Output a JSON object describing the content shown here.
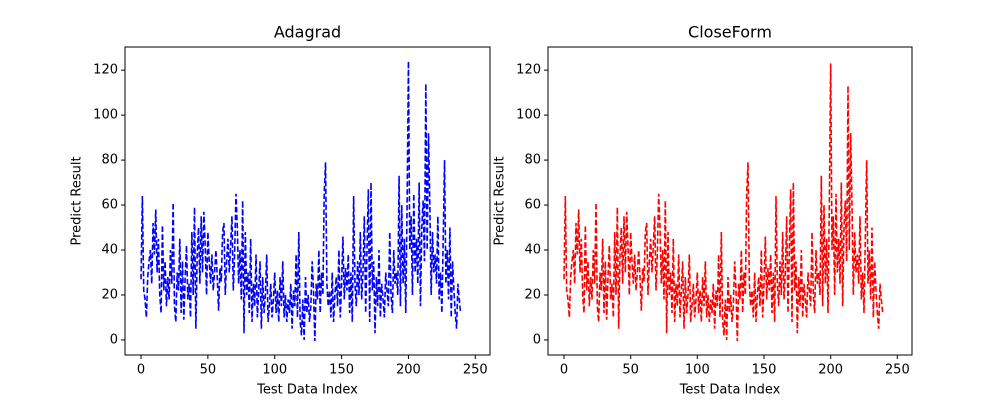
{
  "chart_data": [
    {
      "type": "line",
      "title": "Adagrad",
      "xlabel": "Test Data Index",
      "ylabel": "Predict Result",
      "color": "#0000ff",
      "line_style": "dashed",
      "xlim": [
        -12,
        261
      ],
      "ylim": [
        -6.7,
        130.3
      ],
      "xticks": [
        0,
        50,
        100,
        150,
        200,
        250
      ],
      "yticks": [
        0,
        20,
        40,
        60,
        80,
        100,
        120
      ],
      "x": [
        0,
        1,
        2,
        3,
        4,
        5,
        6,
        7,
        8,
        9,
        10,
        11,
        12,
        13,
        14,
        15,
        16,
        17,
        18,
        19,
        20,
        21,
        22,
        23,
        24,
        25,
        26,
        27,
        28,
        29,
        30,
        31,
        32,
        33,
        34,
        35,
        36,
        37,
        38,
        39,
        40,
        41,
        42,
        43,
        44,
        45,
        46,
        47,
        48,
        49,
        50,
        51,
        52,
        53,
        54,
        55,
        56,
        57,
        58,
        59,
        60,
        61,
        62,
        63,
        64,
        65,
        66,
        67,
        68,
        69,
        70,
        71,
        72,
        73,
        74,
        75,
        76,
        77,
        78,
        79,
        80,
        81,
        82,
        83,
        84,
        85,
        86,
        87,
        88,
        89,
        90,
        91,
        92,
        93,
        94,
        95,
        96,
        97,
        98,
        99,
        100,
        101,
        102,
        103,
        104,
        105,
        106,
        107,
        108,
        109,
        110,
        111,
        112,
        113,
        114,
        115,
        116,
        117,
        118,
        119,
        120,
        121,
        122,
        123,
        124,
        125,
        126,
        127,
        128,
        129,
        130,
        131,
        132,
        133,
        134,
        135,
        136,
        137,
        138,
        139,
        140,
        141,
        142,
        143,
        144,
        145,
        146,
        147,
        148,
        149,
        150,
        151,
        152,
        153,
        154,
        155,
        156,
        157,
        158,
        159,
        160,
        161,
        162,
        163,
        164,
        165,
        166,
        167,
        168,
        169,
        170,
        171,
        172,
        173,
        174,
        175,
        176,
        177,
        178,
        179,
        180,
        181,
        182,
        183,
        184,
        185,
        186,
        187,
        188,
        189,
        190,
        191,
        192,
        193,
        194,
        195,
        196,
        197,
        198,
        199,
        200,
        201,
        202,
        203,
        204,
        205,
        206,
        207,
        208,
        209,
        210,
        211,
        212,
        213,
        214,
        215,
        216,
        217,
        218,
        219,
        220,
        221,
        222,
        223,
        224,
        225,
        226,
        227,
        228,
        229,
        230,
        231,
        232,
        233,
        234,
        235,
        236,
        237,
        238,
        239
      ],
      "values": [
        27,
        64,
        22,
        18,
        10,
        28,
        35,
        40,
        25,
        52,
        38,
        58,
        30,
        45,
        20,
        12,
        51,
        22,
        35,
        15,
        28,
        18,
        40,
        25,
        61,
        15,
        8,
        30,
        22,
        45,
        12,
        35,
        9,
        28,
        42,
        18,
        25,
        10,
        48,
        20,
        59,
        5,
        38,
        50,
        25,
        55,
        30,
        57,
        42,
        20,
        48,
        35,
        25,
        38,
        22,
        30,
        40,
        28,
        13,
        32,
        26,
        48,
        52,
        20,
        35,
        45,
        30,
        42,
        55,
        22,
        38,
        65,
        50,
        25,
        40,
        18,
        62,
        3,
        48,
        20,
        30,
        12,
        45,
        8,
        25,
        15,
        38,
        10,
        22,
        35,
        5,
        28,
        12,
        20,
        38,
        8,
        15,
        25,
        10,
        18,
        30,
        12,
        22,
        8,
        28,
        15,
        35,
        10,
        20,
        8,
        18,
        12,
        25,
        5,
        22,
        15,
        38,
        10,
        48,
        8,
        2,
        18,
        0,
        28,
        12,
        20,
        8,
        15,
        35,
        22,
        -0.5,
        25,
        18,
        40,
        12,
        30,
        20,
        65,
        79,
        25,
        15,
        22,
        10,
        30,
        8,
        20,
        28,
        15,
        40,
        10,
        25,
        46,
        18,
        32,
        22,
        38,
        12,
        30,
        8,
        64,
        25,
        15,
        35,
        20,
        48,
        18,
        30,
        55,
        12,
        40,
        67,
        8,
        70,
        22,
        35,
        3,
        28,
        15,
        40,
        10,
        25,
        18,
        10,
        30,
        22,
        15,
        48,
        20,
        12,
        40,
        25,
        30,
        20,
        73,
        15,
        60,
        25,
        45,
        12,
        60,
        124,
        40,
        55,
        20,
        65,
        30,
        45,
        25,
        70,
        15,
        50,
        62,
        35,
        114,
        40,
        92,
        60,
        20,
        48,
        30,
        38,
        25,
        55,
        18,
        30,
        12,
        45,
        80,
        25,
        40,
        18,
        50,
        10,
        35,
        22,
        12,
        5,
        25,
        18,
        12
      ]
    },
    {
      "type": "line",
      "title": "CloseForm",
      "xlabel": "Test Data Index",
      "ylabel": "Predict Result",
      "color": "#ff0000",
      "line_style": "dashed",
      "xlim": [
        -12,
        261
      ],
      "ylim": [
        -6.7,
        130.3
      ],
      "xticks": [
        0,
        50,
        100,
        150,
        200,
        250
      ],
      "yticks": [
        0,
        20,
        40,
        60,
        80,
        100,
        120
      ],
      "x": [
        0,
        1,
        2,
        3,
        4,
        5,
        6,
        7,
        8,
        9,
        10,
        11,
        12,
        13,
        14,
        15,
        16,
        17,
        18,
        19,
        20,
        21,
        22,
        23,
        24,
        25,
        26,
        27,
        28,
        29,
        30,
        31,
        32,
        33,
        34,
        35,
        36,
        37,
        38,
        39,
        40,
        41,
        42,
        43,
        44,
        45,
        46,
        47,
        48,
        49,
        50,
        51,
        52,
        53,
        54,
        55,
        56,
        57,
        58,
        59,
        60,
        61,
        62,
        63,
        64,
        65,
        66,
        67,
        68,
        69,
        70,
        71,
        72,
        73,
        74,
        75,
        76,
        77,
        78,
        79,
        80,
        81,
        82,
        83,
        84,
        85,
        86,
        87,
        88,
        89,
        90,
        91,
        92,
        93,
        94,
        95,
        96,
        97,
        98,
        99,
        100,
        101,
        102,
        103,
        104,
        105,
        106,
        107,
        108,
        109,
        110,
        111,
        112,
        113,
        114,
        115,
        116,
        117,
        118,
        119,
        120,
        121,
        122,
        123,
        124,
        125,
        126,
        127,
        128,
        129,
        130,
        131,
        132,
        133,
        134,
        135,
        136,
        137,
        138,
        139,
        140,
        141,
        142,
        143,
        144,
        145,
        146,
        147,
        148,
        149,
        150,
        151,
        152,
        153,
        154,
        155,
        156,
        157,
        158,
        159,
        160,
        161,
        162,
        163,
        164,
        165,
        166,
        167,
        168,
        169,
        170,
        171,
        172,
        173,
        174,
        175,
        176,
        177,
        178,
        179,
        180,
        181,
        182,
        183,
        184,
        185,
        186,
        187,
        188,
        189,
        190,
        191,
        192,
        193,
        194,
        195,
        196,
        197,
        198,
        199,
        200,
        201,
        202,
        203,
        204,
        205,
        206,
        207,
        208,
        209,
        210,
        211,
        212,
        213,
        214,
        215,
        216,
        217,
        218,
        219,
        220,
        221,
        222,
        223,
        224,
        225,
        226,
        227,
        228,
        229,
        230,
        231,
        232,
        233,
        234,
        235,
        236,
        237,
        238,
        239
      ],
      "values": [
        27,
        64,
        22,
        18,
        10,
        28,
        35,
        40,
        25,
        52,
        38,
        58,
        30,
        45,
        20,
        12,
        51,
        22,
        35,
        15,
        28,
        18,
        40,
        25,
        61,
        15,
        8,
        30,
        22,
        45,
        12,
        35,
        9,
        28,
        42,
        18,
        25,
        10,
        48,
        20,
        59,
        5,
        38,
        50,
        25,
        55,
        30,
        57,
        42,
        20,
        48,
        35,
        25,
        38,
        22,
        30,
        40,
        28,
        13,
        32,
        26,
        48,
        52,
        20,
        35,
        45,
        30,
        42,
        55,
        22,
        38,
        65,
        50,
        25,
        40,
        18,
        62,
        3,
        48,
        20,
        30,
        12,
        45,
        8,
        25,
        15,
        38,
        10,
        22,
        35,
        5,
        28,
        12,
        20,
        38,
        8,
        15,
        25,
        10,
        18,
        30,
        12,
        22,
        8,
        28,
        15,
        35,
        10,
        20,
        8,
        18,
        12,
        25,
        5,
        22,
        15,
        38,
        10,
        48,
        8,
        2,
        18,
        0,
        28,
        12,
        20,
        8,
        15,
        35,
        22,
        -0.5,
        25,
        18,
        40,
        12,
        30,
        20,
        65,
        79,
        25,
        15,
        22,
        10,
        30,
        8,
        20,
        28,
        15,
        40,
        10,
        25,
        46,
        18,
        32,
        22,
        38,
        12,
        30,
        8,
        64,
        25,
        15,
        35,
        20,
        48,
        18,
        30,
        55,
        12,
        40,
        67,
        8,
        70,
        22,
        35,
        3,
        28,
        15,
        40,
        10,
        25,
        18,
        10,
        30,
        22,
        15,
        48,
        20,
        12,
        40,
        25,
        30,
        20,
        73,
        15,
        60,
        25,
        45,
        12,
        60,
        123,
        40,
        55,
        20,
        65,
        30,
        45,
        25,
        70,
        15,
        50,
        62,
        35,
        113,
        40,
        92,
        60,
        20,
        48,
        30,
        38,
        25,
        55,
        18,
        30,
        12,
        45,
        80,
        25,
        40,
        18,
        50,
        10,
        35,
        22,
        12,
        5,
        25,
        18,
        12
      ]
    }
  ]
}
